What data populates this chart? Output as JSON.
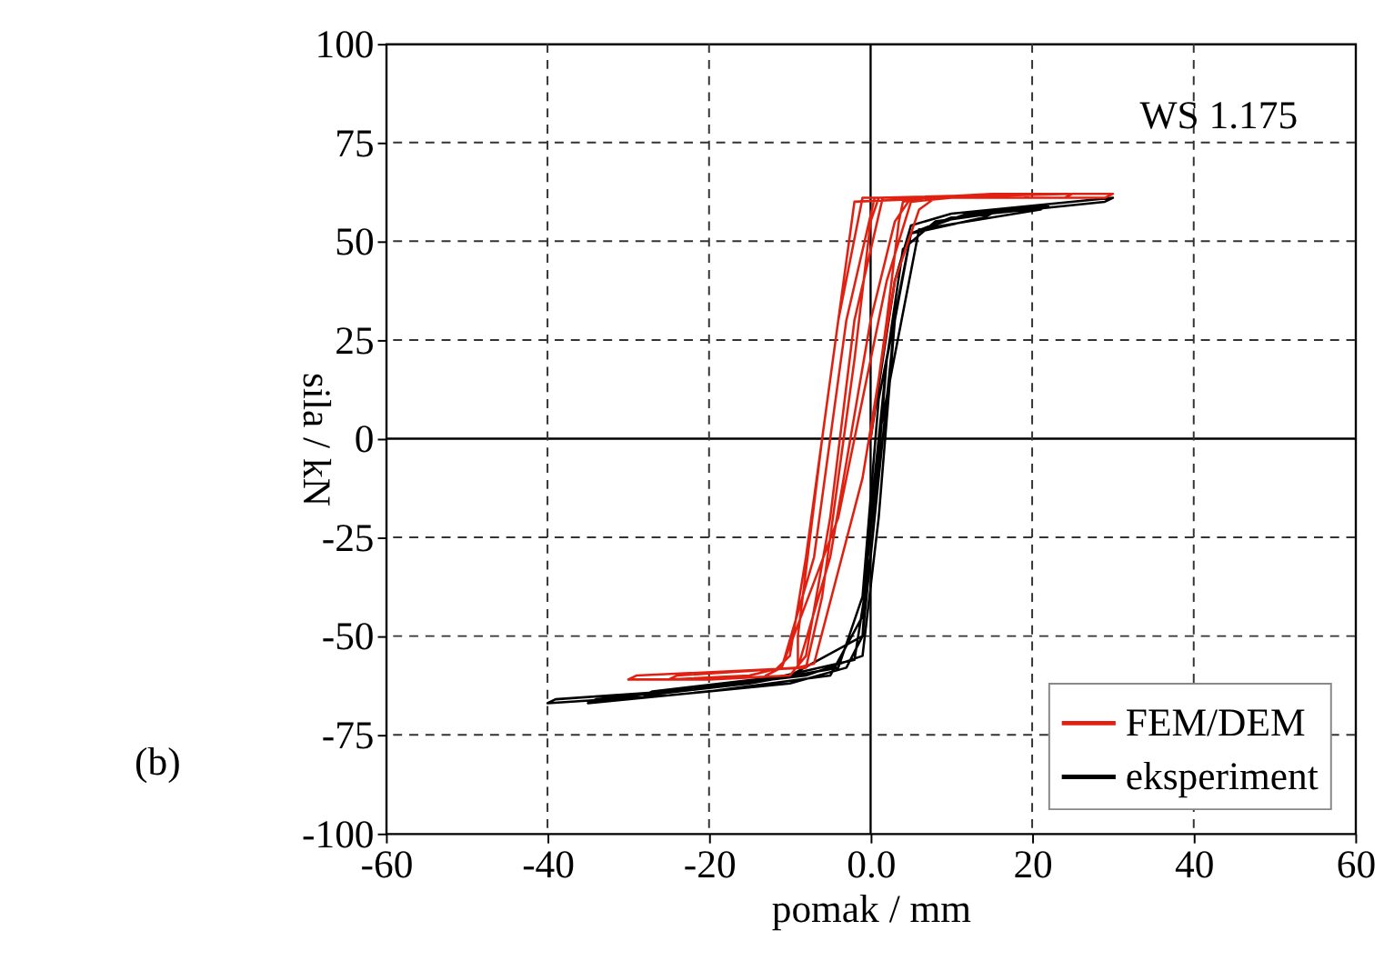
{
  "chart_data": {
    "type": "line",
    "xlabel": "pomak / mm",
    "ylabel": "sila / kN",
    "xlim": [
      -60,
      60
    ],
    "xticks": [
      -60,
      -40,
      -20,
      {
        "value": 0,
        "label": "0.0"
      },
      20,
      40,
      60
    ],
    "ylim": [
      -100,
      100
    ],
    "yticks": [
      -100,
      -75,
      -50,
      -25,
      0,
      25,
      50,
      75,
      100
    ],
    "grid": true,
    "legend": "bottom right",
    "line_style": "solid",
    "marker": "none",
    "annotations": [
      "WS 1.175",
      "(b)"
    ],
    "series": [
      {
        "name": "eksperiment",
        "color": "#000000",
        "x": [
          0,
          3,
          5,
          10,
          20,
          30,
          29,
          10,
          5,
          2,
          0,
          -1,
          -3,
          -10,
          -25,
          -40,
          -39,
          -25,
          -8,
          -1,
          1,
          3,
          5,
          12,
          22,
          21,
          6,
          1,
          -1,
          -5,
          -20,
          -35,
          -34,
          -15,
          -2,
          0,
          2,
          4,
          8,
          15,
          14,
          5,
          1,
          -1,
          -4,
          -15,
          -28,
          -27,
          -10,
          -1,
          1,
          3
        ],
        "values": [
          0,
          40,
          54,
          57,
          59,
          61,
          60,
          56,
          52,
          20,
          -20,
          -50,
          -58,
          -62,
          -65,
          -67,
          -66,
          -64,
          -60,
          -55,
          -20,
          30,
          52,
          57,
          59,
          58,
          53,
          0,
          -45,
          -60,
          -64,
          -67,
          -66,
          -62,
          -56,
          -30,
          20,
          48,
          55,
          57,
          56,
          52,
          10,
          -40,
          -58,
          -62,
          -65,
          -64,
          -60,
          -50,
          -10,
          30
        ]
      },
      {
        "name": "FEM/DEM",
        "color": "#e02010",
        "x": [
          0,
          2,
          3.5,
          4,
          6,
          15,
          30,
          29,
          1.5,
          -2,
          -5,
          -8,
          -10,
          -20,
          -30,
          -29,
          -8,
          -6,
          -2,
          0,
          1,
          20,
          19,
          0.5,
          -3,
          -7,
          -11,
          -15,
          -25,
          -24,
          -9,
          -5,
          0,
          3,
          5,
          25,
          24,
          -1,
          -4,
          -8,
          -10,
          -12,
          -13,
          -11,
          -4,
          2,
          5,
          10,
          9,
          -2,
          -6,
          -9,
          -9,
          -7,
          -1,
          3,
          6,
          8
        ],
        "values": [
          0,
          30,
          55,
          60,
          61,
          62,
          62,
          61,
          61,
          30,
          -20,
          -55,
          -60,
          -61,
          -61,
          -60,
          -58,
          -40,
          20,
          55,
          61,
          62,
          61,
          61,
          30,
          -30,
          -58,
          -60,
          -61,
          -60,
          -58,
          -30,
          30,
          55,
          61,
          62,
          61,
          61,
          30,
          -30,
          -55,
          -59,
          -60,
          -58,
          -20,
          40,
          60,
          61,
          61,
          60,
          0,
          -50,
          -58,
          -57,
          -10,
          40,
          58,
          61
        ]
      }
    ]
  }
}
